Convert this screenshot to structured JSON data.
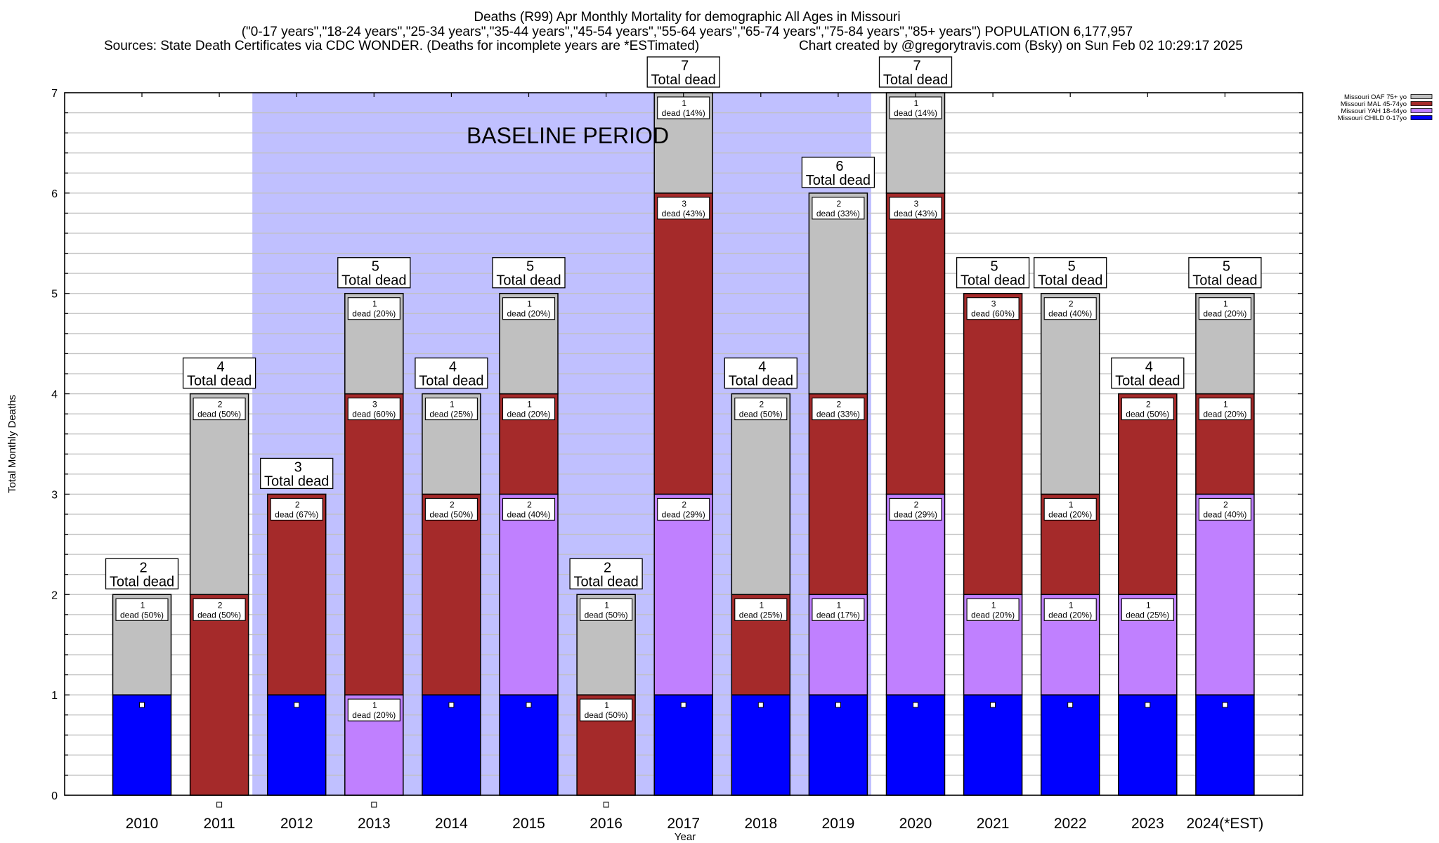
{
  "chart_data": {
    "type": "bar",
    "stacked": true,
    "title": "Deaths (R99) Apr Monthly Mortality for demographic All Ages in Missouri",
    "subtitle": "(\"0-17 years\",\"18-24 years\",\"25-34 years\",\"35-44 years\",\"45-54 years\",\"55-64 years\",\"65-74 years\",\"75-84 years\",\"85+ years\") POPULATION 6,177,957",
    "sources": "Sources: State Death Certificates via CDC WONDER. (Deaths for incomplete years are *ESTimated)",
    "credit": "Chart created by @gregorytravis.com (Bsky) on Sun Feb 02 10:29:17 2025",
    "xlabel": "Year",
    "ylabel": "Total Monthly Deaths",
    "ylim": [
      0,
      7
    ],
    "yticks": [
      "0",
      "1",
      "2",
      "3",
      "4",
      "5",
      "6",
      "7"
    ],
    "grid": true,
    "legend_position": "top-right",
    "annotation": "BASELINE PERIOD",
    "baseline_period": [
      "2012",
      "2019"
    ],
    "categories": [
      "2010",
      "2011",
      "2012",
      "2013",
      "2014",
      "2015",
      "2016",
      "2017",
      "2018",
      "2019",
      "2020",
      "2021",
      "2022",
      "2023",
      "2024(*EST)"
    ],
    "series": [
      {
        "name": "Missouri CHILD 0-17yo",
        "color": "#0000ff",
        "values": [
          1,
          0,
          1,
          0,
          1,
          1,
          0,
          1,
          1,
          1,
          1,
          1,
          1,
          1,
          1
        ]
      },
      {
        "name": "Missouri YAH 18-44yo",
        "color": "#c080ff",
        "values": [
          0,
          0,
          0,
          1,
          0,
          2,
          0,
          2,
          0,
          1,
          2,
          1,
          1,
          1,
          2
        ]
      },
      {
        "name": "Missouri MAL 45-74yo",
        "color": "#a52a2a",
        "values": [
          0,
          2,
          2,
          3,
          2,
          1,
          1,
          3,
          1,
          2,
          3,
          3,
          1,
          2,
          1
        ]
      },
      {
        "name": "Missouri OAF 75+ yo",
        "color": "#c0c0c0",
        "values": [
          1,
          2,
          0,
          1,
          1,
          1,
          1,
          1,
          2,
          2,
          1,
          0,
          2,
          0,
          1
        ]
      }
    ],
    "totals": [
      2,
      4,
      3,
      5,
      4,
      5,
      2,
      7,
      4,
      6,
      7,
      5,
      5,
      4,
      5
    ],
    "total_label": "Total dead",
    "segment_label_word": "dead",
    "segment_labels": [
      {
        "year": "2010",
        "series": "Missouri OAF 75+ yo",
        "count": "1",
        "text": "dead (50%)"
      },
      {
        "year": "2011",
        "series": "Missouri MAL 45-74yo",
        "count": "2",
        "text": "dead (50%)"
      },
      {
        "year": "2011",
        "series": "Missouri OAF 75+ yo",
        "count": "2",
        "text": "dead (50%)"
      },
      {
        "year": "2012",
        "series": "Missouri MAL 45-74yo",
        "count": "2",
        "text": "dead (67%)"
      },
      {
        "year": "2013",
        "series": "Missouri YAH 18-44yo",
        "count": "1",
        "text": "dead (20%)"
      },
      {
        "year": "2013",
        "series": "Missouri MAL 45-74yo",
        "count": "3",
        "text": "dead (60%)"
      },
      {
        "year": "2013",
        "series": "Missouri OAF 75+ yo",
        "count": "1",
        "text": "dead (20%)"
      },
      {
        "year": "2014",
        "series": "Missouri MAL 45-74yo",
        "count": "2",
        "text": "dead (50%)"
      },
      {
        "year": "2014",
        "series": "Missouri OAF 75+ yo",
        "count": "1",
        "text": "dead (25%)"
      },
      {
        "year": "2015",
        "series": "Missouri YAH 18-44yo",
        "count": "2",
        "text": "dead (40%)"
      },
      {
        "year": "2015",
        "series": "Missouri MAL 45-74yo",
        "count": "1",
        "text": "dead (20%)"
      },
      {
        "year": "2015",
        "series": "Missouri OAF 75+ yo",
        "count": "1",
        "text": "dead (20%)"
      },
      {
        "year": "2016",
        "series": "Missouri MAL 45-74yo",
        "count": "1",
        "text": "dead (50%)"
      },
      {
        "year": "2016",
        "series": "Missouri OAF 75+ yo",
        "count": "1",
        "text": "dead (50%)"
      },
      {
        "year": "2017",
        "series": "Missouri YAH 18-44yo",
        "count": "2",
        "text": "dead (29%)"
      },
      {
        "year": "2017",
        "series": "Missouri MAL 45-74yo",
        "count": "3",
        "text": "dead (43%)"
      },
      {
        "year": "2017",
        "series": "Missouri OAF 75+ yo",
        "count": "1",
        "text": "dead (14%)"
      },
      {
        "year": "2018",
        "series": "Missouri MAL 45-74yo",
        "count": "1",
        "text": "dead (25%)"
      },
      {
        "year": "2018",
        "series": "Missouri OAF 75+ yo",
        "count": "2",
        "text": "dead (50%)"
      },
      {
        "year": "2019",
        "series": "Missouri YAH 18-44yo",
        "count": "1",
        "text": "dead (17%)"
      },
      {
        "year": "2019",
        "series": "Missouri MAL 45-74yo",
        "count": "2",
        "text": "dead (33%)"
      },
      {
        "year": "2019",
        "series": "Missouri OAF 75+ yo",
        "count": "2",
        "text": "dead (33%)"
      },
      {
        "year": "2020",
        "series": "Missouri YAH 18-44yo",
        "count": "2",
        "text": "dead (29%)"
      },
      {
        "year": "2020",
        "series": "Missouri MAL 45-74yo",
        "count": "3",
        "text": "dead (43%)"
      },
      {
        "year": "2020",
        "series": "Missouri OAF 75+ yo",
        "count": "1",
        "text": "dead (14%)"
      },
      {
        "year": "2021",
        "series": "Missouri YAH 18-44yo",
        "count": "1",
        "text": "dead (20%)"
      },
      {
        "year": "2021",
        "series": "Missouri MAL 45-74yo",
        "count": "3",
        "text": "dead (60%)"
      },
      {
        "year": "2022",
        "series": "Missouri YAH 18-44yo",
        "count": "1",
        "text": "dead (20%)"
      },
      {
        "year": "2022",
        "series": "Missouri MAL 45-74yo",
        "count": "1",
        "text": "dead (20%)"
      },
      {
        "year": "2022",
        "series": "Missouri OAF 75+ yo",
        "count": "2",
        "text": "dead (40%)"
      },
      {
        "year": "2023",
        "series": "Missouri YAH 18-44yo",
        "count": "1",
        "text": "dead (25%)"
      },
      {
        "year": "2023",
        "series": "Missouri MAL 45-74yo",
        "count": "2",
        "text": "dead (50%)"
      },
      {
        "year": "2024(*EST)",
        "series": "Missouri YAH 18-44yo",
        "count": "2",
        "text": "dead (40%)"
      },
      {
        "year": "2024(*EST)",
        "series": "Missouri MAL 45-74yo",
        "count": "1",
        "text": "dead (20%)"
      },
      {
        "year": "2024(*EST)",
        "series": "Missouri OAF 75+ yo",
        "count": "1",
        "text": "dead (20%)"
      }
    ],
    "legend_order": [
      "Missouri OAF 75+ yo",
      "Missouri MAL 45-74yo",
      "Missouri YAH 18-44yo",
      "Missouri CHILD 0-17yo"
    ],
    "colors": {
      "baseline_shade": "#c0c0ff",
      "grid": "#c0c0c0",
      "axis": "#000000"
    }
  }
}
